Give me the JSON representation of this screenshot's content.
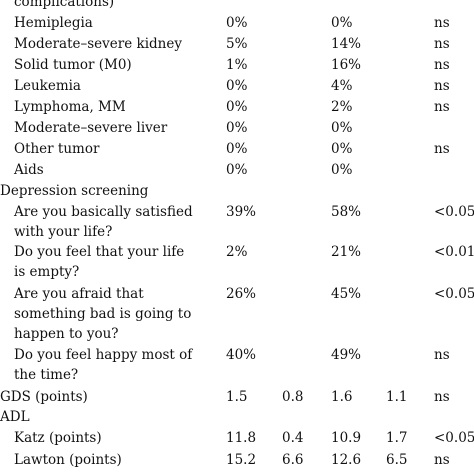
{
  "rows": [
    {
      "label": "complications)",
      "v1": "",
      "v2": "",
      "v3": "",
      "v4": "",
      "v5": ""
    },
    {
      "label": "Hemiplegia",
      "v1": "0%",
      "v2": "",
      "v3": "0%",
      "v4": "",
      "v5": "ns"
    },
    {
      "label": "Moderate–severe kidney",
      "v1": "5%",
      "v2": "",
      "v3": "14%",
      "v4": "",
      "v5": "ns"
    },
    {
      "label": "Solid tumor (M0)",
      "v1": "1%",
      "v2": "",
      "v3": "16%",
      "v4": "",
      "v5": "ns"
    },
    {
      "label": "Leukemia",
      "v1": "0%",
      "v2": "",
      "v3": "4%",
      "v4": "",
      "v5": "ns"
    },
    {
      "label": "Lymphoma, MM",
      "v1": "0%",
      "v2": "",
      "v3": "2%",
      "v4": "",
      "v5": "ns"
    },
    {
      "label": "Moderate–severe liver",
      "v1": "0%",
      "v2": "",
      "v3": "0%",
      "v4": "",
      "v5": ""
    },
    {
      "label": "Other tumor",
      "v1": "0%",
      "v2": "",
      "v3": "0%",
      "v4": "",
      "v5": "ns"
    },
    {
      "label": "Aids",
      "v1": "0%",
      "v2": "",
      "v3": "0%",
      "v4": "",
      "v5": ""
    },
    {
      "label": "Depression screening",
      "v1": "",
      "v2": "",
      "v3": "",
      "v4": "",
      "v5": ""
    },
    {
      "label": "Are you basically satisfied",
      "v1": "39%",
      "v2": "",
      "v3": "58%",
      "v4": "",
      "v5": "<0.05"
    },
    {
      "label": "with your life?",
      "v1": "",
      "v2": "",
      "v3": "",
      "v4": "",
      "v5": ""
    },
    {
      "label": "Do you feel that your life",
      "v1": "2%",
      "v2": "",
      "v3": "21%",
      "v4": "",
      "v5": "<0.01"
    },
    {
      "label": "is empty?",
      "v1": "",
      "v2": "",
      "v3": "",
      "v4": "",
      "v5": ""
    },
    {
      "label": "Are you afraid that",
      "v1": "26%",
      "v2": "",
      "v3": "45%",
      "v4": "",
      "v5": "<0.05"
    },
    {
      "label": "something bad is going to",
      "v1": "",
      "v2": "",
      "v3": "",
      "v4": "",
      "v5": ""
    },
    {
      "label": "happen to you?",
      "v1": "",
      "v2": "",
      "v3": "",
      "v4": "",
      "v5": ""
    },
    {
      "label": "Do you feel happy most of",
      "v1": "40%",
      "v2": "",
      "v3": "49%",
      "v4": "",
      "v5": "ns"
    },
    {
      "label": "the time?",
      "v1": "",
      "v2": "",
      "v3": "",
      "v4": "",
      "v5": ""
    },
    {
      "label": "GDS (points)",
      "v1": "1.5",
      "v2": "0.8",
      "v3": "1.6",
      "v4": "1.1",
      "v5": "ns"
    },
    {
      "label": "ADL",
      "v1": "",
      "v2": "",
      "v3": "",
      "v4": "",
      "v5": ""
    },
    {
      "label": "Katz (points)",
      "v1": "11.8",
      "v2": "0.4",
      "v3": "10.9",
      "v4": "1.7",
      "v5": "<0.05"
    },
    {
      "label": "Lawton (points)",
      "v1": "15.2",
      "v2": "6.6",
      "v3": "12.6",
      "v4": "6.5",
      "v5": "ns"
    }
  ]
}
